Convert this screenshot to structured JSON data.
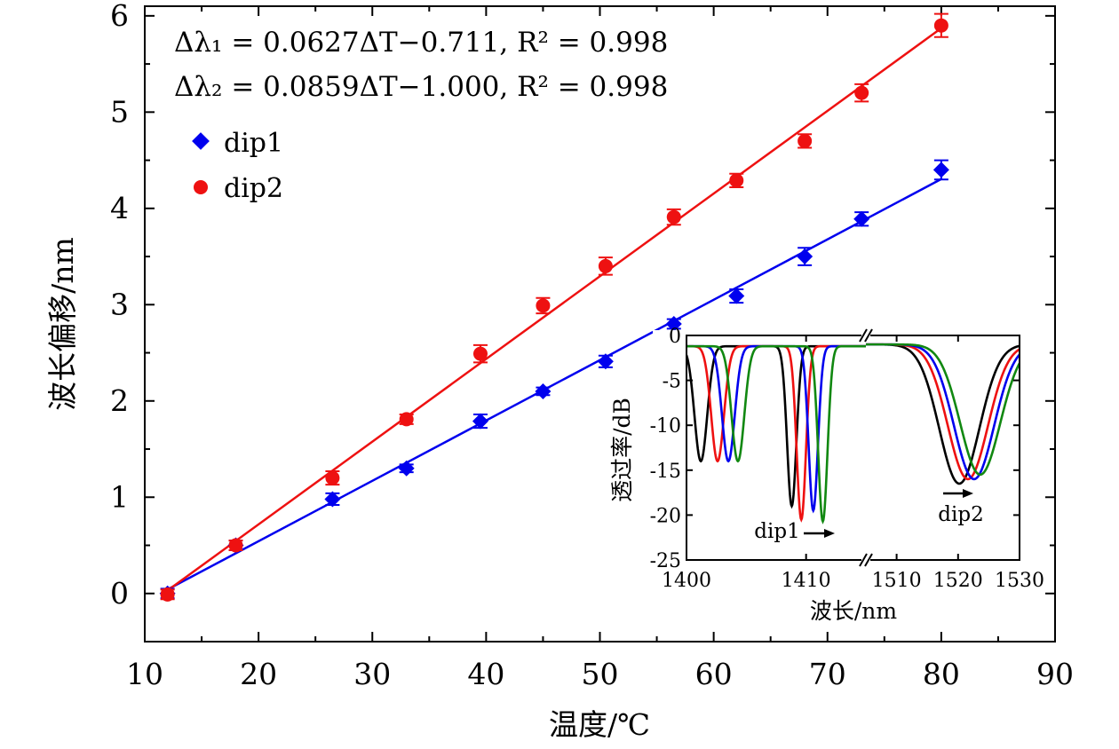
{
  "chart_data": {
    "type": "scatter",
    "main": {
      "xlabel": "温度/℃",
      "ylabel": "波长偏移/nm",
      "xlim": [
        10,
        90
      ],
      "ylim": [
        -0.5,
        6.1
      ],
      "x_ticks": [
        10,
        20,
        30,
        40,
        50,
        60,
        70,
        80,
        90
      ],
      "y_ticks": [
        0,
        1,
        2,
        3,
        4,
        5,
        6
      ],
      "x_tick_labels": [
        "10",
        "20",
        "30",
        "40",
        "50",
        "60",
        "70",
        "80",
        "90"
      ],
      "y_tick_labels": [
        "0",
        "1",
        "2",
        "3",
        "4",
        "5",
        "6"
      ],
      "x": [
        12,
        18,
        26.5,
        33,
        39.5,
        45,
        50.5,
        56.5,
        62,
        68,
        73,
        80
      ],
      "series": [
        {
          "name": "dip1",
          "marker": "diamond",
          "color": "#0000ee",
          "values": [
            0.0,
            0.5,
            0.98,
            1.3,
            1.79,
            2.1,
            2.41,
            2.8,
            3.09,
            3.5,
            3.89,
            4.4
          ],
          "errors": [
            0.05,
            0.05,
            0.06,
            0.04,
            0.07,
            0.04,
            0.06,
            0.05,
            0.07,
            0.09,
            0.07,
            0.1
          ],
          "fit": {
            "slope": 0.0627,
            "intercept": -0.711
          }
        },
        {
          "name": "dip2",
          "marker": "circle",
          "color": "#ee1111",
          "values": [
            -0.01,
            0.5,
            1.2,
            1.81,
            2.49,
            2.99,
            3.4,
            3.91,
            4.29,
            4.7,
            5.2,
            5.9
          ],
          "errors": [
            0.05,
            0.05,
            0.07,
            0.05,
            0.09,
            0.08,
            0.09,
            0.08,
            0.07,
            0.07,
            0.09,
            0.12
          ],
          "fit": {
            "slope": 0.0859,
            "intercept": -1.0
          }
        }
      ],
      "equations": [
        "Δλ₁ = 0.0627ΔT−0.711,  R² = 0.998",
        "Δλ₂ = 0.0859ΔT−1.000,  R² = 0.998"
      ],
      "legend": [
        "dip1",
        "dip2"
      ],
      "legend_position": "top-left"
    },
    "inset": {
      "type": "line",
      "xlabel": "波长/nm",
      "ylabel": "透过率/dB",
      "ylim": [
        -25,
        0
      ],
      "y_ticks": [
        0,
        -5,
        -10,
        -15,
        -20,
        -25
      ],
      "y_tick_labels": [
        "0",
        "-5",
        "-10",
        "-15",
        "-20",
        "-25"
      ],
      "x_segments": [
        {
          "range": [
            1400,
            1415
          ],
          "ticks": [
            1400,
            1410
          ],
          "tick_labels": [
            "1400",
            "1410"
          ]
        },
        {
          "range": [
            1505,
            1530
          ],
          "ticks": [
            1510,
            1520,
            1530
          ],
          "tick_labels": [
            "1510",
            "1520",
            "1530"
          ]
        }
      ],
      "axis_break": true,
      "series": [
        {
          "color": "#000000",
          "dip_a": {
            "center": 1401.2,
            "depth": -14.0
          },
          "dip_b": {
            "center": 1408.8,
            "depth": -19.0
          },
          "dip_c": {
            "center": 1520.2,
            "depth": -16.5
          }
        },
        {
          "color": "#ee1111",
          "dip_a": {
            "center": 1402.6,
            "depth": -14.0
          },
          "dip_b": {
            "center": 1409.6,
            "depth": -20.5
          },
          "dip_c": {
            "center": 1521.6,
            "depth": -16.0
          }
        },
        {
          "color": "#0000ee",
          "dip_a": {
            "center": 1403.5,
            "depth": -14.0
          },
          "dip_b": {
            "center": 1410.6,
            "depth": -19.5
          },
          "dip_c": {
            "center": 1522.6,
            "depth": -16.0
          }
        },
        {
          "color": "#118811",
          "dip_a": {
            "center": 1404.3,
            "depth": -14.0
          },
          "dip_b": {
            "center": 1411.4,
            "depth": -20.7
          },
          "dip_c": {
            "center": 1523.6,
            "depth": -15.5
          }
        }
      ],
      "annotations": [
        "dip1",
        "dip2"
      ]
    }
  }
}
